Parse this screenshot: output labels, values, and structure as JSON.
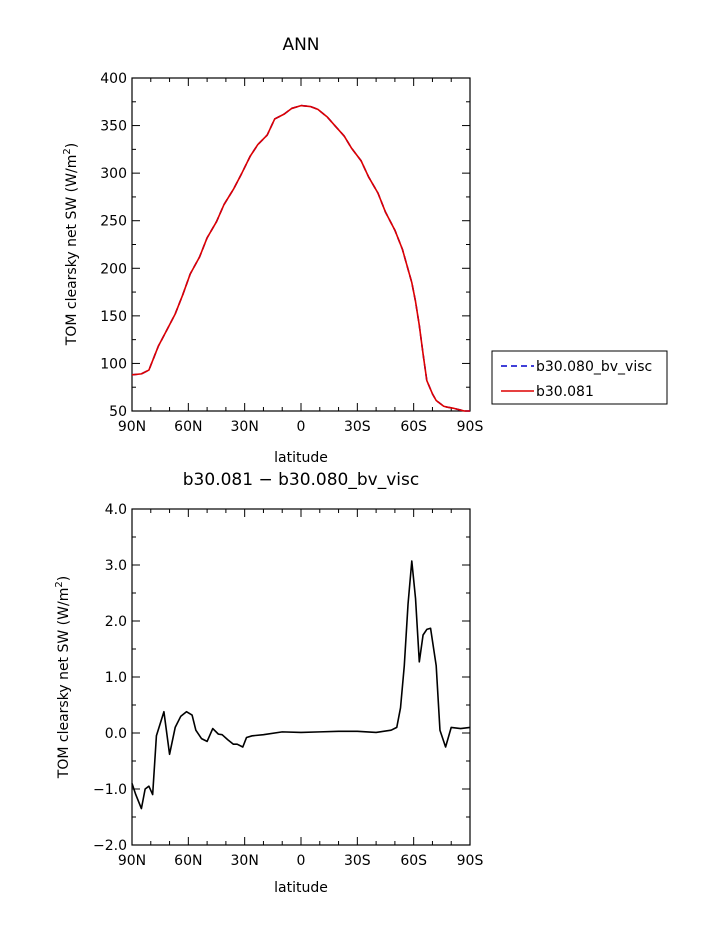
{
  "chart_data": [
    {
      "type": "line",
      "title": "ANN",
      "xlabel": "latitude",
      "ylabel": "TOM clearsky net SW",
      "ylabel_units": "(W/m",
      "ylabel_sup": "2",
      "ylabel_close": ")",
      "xlim": [
        90,
        -90
      ],
      "ylim": [
        50,
        400
      ],
      "xticks": [
        {
          "v": 90,
          "label": "90N"
        },
        {
          "v": 60,
          "label": "60N"
        },
        {
          "v": 30,
          "label": "30N"
        },
        {
          "v": 0,
          "label": "0"
        },
        {
          "v": -30,
          "label": "30S"
        },
        {
          "v": -60,
          "label": "60S"
        },
        {
          "v": -90,
          "label": "90S"
        }
      ],
      "yticks": [
        {
          "v": 50,
          "label": "50"
        },
        {
          "v": 100,
          "label": "100"
        },
        {
          "v": 150,
          "label": "150"
        },
        {
          "v": 200,
          "label": "200"
        },
        {
          "v": 250,
          "label": "250"
        },
        {
          "v": 300,
          "label": "300"
        },
        {
          "v": 350,
          "label": "350"
        },
        {
          "v": 400,
          "label": "400"
        }
      ],
      "legend": {
        "placement": "right"
      },
      "series": [
        {
          "name": "b30.080_bv_visc",
          "color": "#0000cc",
          "dash": true,
          "x": [
            90,
            85,
            81,
            76,
            72,
            67,
            63,
            59,
            54,
            50,
            45,
            41,
            36,
            32,
            27,
            23,
            18,
            14,
            9,
            5,
            0,
            -5,
            -9,
            -14,
            -18,
            -23,
            -27,
            -32,
            -36,
            -41,
            -45,
            -50,
            -54,
            -59,
            -61,
            -63,
            -65,
            -67,
            -70,
            -72,
            -74,
            -76,
            -78,
            -81,
            -83,
            -85,
            -87,
            -90
          ],
          "y": [
            88,
            89,
            93,
            118,
            133,
            152,
            172,
            194,
            212,
            232,
            249,
            267,
            283,
            298,
            318,
            330,
            340,
            357,
            362,
            368,
            371,
            370,
            367,
            359,
            350,
            339,
            326,
            313,
            296,
            279,
            259,
            240,
            220,
            185,
            165,
            140,
            110,
            82,
            68,
            61,
            58,
            55,
            54,
            53,
            52,
            51,
            50,
            50
          ]
        },
        {
          "name": "b30.081",
          "color": "#dd0000",
          "dash": false,
          "x": [
            90,
            85,
            81,
            76,
            72,
            67,
            63,
            59,
            54,
            50,
            45,
            41,
            36,
            32,
            27,
            23,
            18,
            14,
            9,
            5,
            0,
            -5,
            -9,
            -14,
            -18,
            -23,
            -27,
            -32,
            -36,
            -41,
            -45,
            -50,
            -54,
            -59,
            -61,
            -63,
            -65,
            -67,
            -70,
            -72,
            -74,
            -76,
            -78,
            -81,
            -83,
            -85,
            -87,
            -90
          ],
          "y": [
            88,
            89,
            93,
            118,
            133,
            152,
            172,
            194,
            212,
            232,
            249,
            267,
            283,
            298,
            318,
            330,
            340,
            357,
            362,
            368,
            371,
            370,
            367,
            359,
            350,
            339,
            326,
            313,
            296,
            279,
            259,
            240,
            220,
            185,
            165,
            140,
            110,
            82,
            68,
            61,
            58,
            55,
            54,
            53,
            52,
            51,
            50,
            50
          ]
        }
      ]
    },
    {
      "type": "line",
      "title": "b30.081 − b30.080_bv_visc",
      "xlabel": "latitude",
      "ylabel": "TOM clearsky net SW",
      "ylabel_units": "(W/m",
      "ylabel_sup": "2",
      "ylabel_close": ")",
      "xlim": [
        90,
        -90
      ],
      "ylim": [
        -2.0,
        4.0
      ],
      "xticks": [
        {
          "v": 90,
          "label": "90N"
        },
        {
          "v": 60,
          "label": "60N"
        },
        {
          "v": 30,
          "label": "30N"
        },
        {
          "v": 0,
          "label": "0"
        },
        {
          "v": -30,
          "label": "30S"
        },
        {
          "v": -60,
          "label": "60S"
        },
        {
          "v": -90,
          "label": "90S"
        }
      ],
      "yticks": [
        {
          "v": -2.0,
          "label": "−2.0"
        },
        {
          "v": -1.0,
          "label": "−1.0"
        },
        {
          "v": 0.0,
          "label": "0.0"
        },
        {
          "v": 1.0,
          "label": "1.0"
        },
        {
          "v": 2.0,
          "label": "2.0"
        },
        {
          "v": 3.0,
          "label": "3.0"
        },
        {
          "v": 4.0,
          "label": "4.0"
        }
      ],
      "series": [
        {
          "color": "#000000",
          "dash": false,
          "x": [
            90,
            88,
            85,
            83,
            81,
            79,
            77,
            73,
            70,
            67,
            64,
            61,
            58,
            56,
            53,
            50,
            47,
            44,
            42,
            39,
            36,
            34,
            31,
            29,
            26,
            20,
            10,
            0,
            -10,
            -20,
            -30,
            -40,
            -48,
            -51,
            -53,
            -55,
            -57,
            -59,
            -61,
            -63,
            -65,
            -67,
            -69,
            -72,
            -74,
            -77,
            -80,
            -85,
            -90
          ],
          "y": [
            -0.9,
            -1.1,
            -1.35,
            -1.0,
            -0.95,
            -1.1,
            -0.05,
            0.38,
            -0.38,
            0.1,
            0.3,
            0.38,
            0.32,
            0.05,
            -0.1,
            -0.15,
            0.08,
            -0.02,
            -0.03,
            -0.12,
            -0.2,
            -0.2,
            -0.25,
            -0.08,
            -0.05,
            -0.03,
            0.02,
            0.01,
            0.02,
            0.03,
            0.03,
            0.01,
            0.05,
            0.1,
            0.45,
            1.2,
            2.3,
            3.07,
            2.4,
            1.27,
            1.75,
            1.85,
            1.87,
            1.2,
            0.05,
            -0.25,
            0.1,
            0.08,
            0.1
          ]
        }
      ]
    }
  ]
}
